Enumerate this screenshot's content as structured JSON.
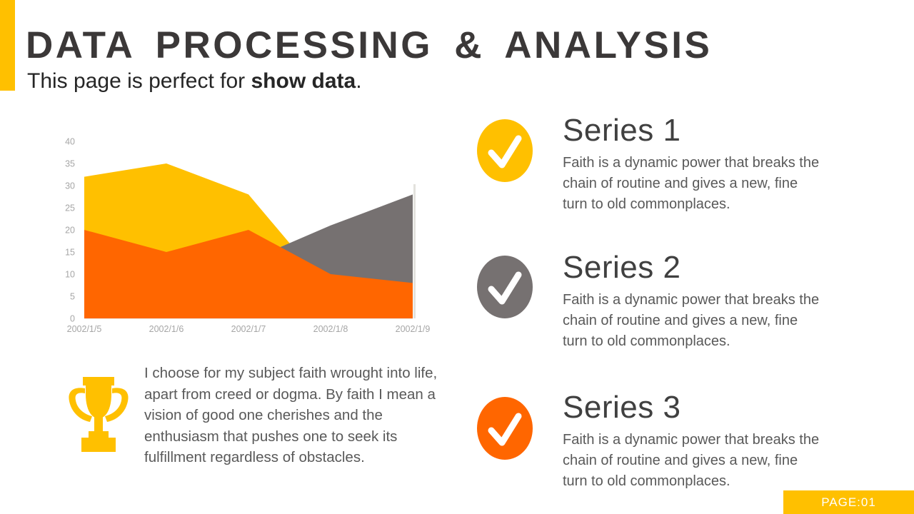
{
  "slide": {
    "accent_color": "#FFC000",
    "title": "DATA PROCESSING & ANALYSIS",
    "subtitle_prefix": "This page is perfect for ",
    "subtitle_bold": "show data",
    "subtitle_suffix": ".",
    "page_label": "PAGE:01"
  },
  "chart_data": {
    "type": "area",
    "title": "",
    "categories": [
      "2002/1/5",
      "2002/1/6",
      "2002/1/7",
      "2002/1/8",
      "2002/1/9"
    ],
    "series": [
      {
        "name": "Series 1",
        "color": "#FFC000",
        "values": [
          32,
          35,
          28,
          6,
          5
        ]
      },
      {
        "name": "Series 2",
        "color": "#767171",
        "values": [
          10,
          8,
          13,
          21,
          28
        ]
      },
      {
        "name": "Series 3",
        "color": "#FF6600",
        "values": [
          20,
          15,
          20,
          10,
          8
        ]
      }
    ],
    "xlabel": "",
    "ylabel": "",
    "ylim": [
      0,
      40
    ],
    "ytick_step": 5,
    "grid": false,
    "legend_position": "none",
    "tick_color": "#a6a6a6"
  },
  "features": [
    {
      "title": "Series 1",
      "color": "#FFC000",
      "description": "Faith is a dynamic power that breaks the chain of routine and gives a new, fine turn to old commonplaces."
    },
    {
      "title": "Series 2",
      "color": "#767171",
      "description": "Faith is a dynamic power that breaks the chain of routine and gives a new, fine turn to old commonplaces."
    },
    {
      "title": "Series 3",
      "color": "#FF6600",
      "description": "Faith is a dynamic power that breaks the chain of routine and gives a new, fine turn to old commonplaces."
    }
  ],
  "quote": {
    "icon": "trophy-icon",
    "icon_color": "#FFC000",
    "text": "I choose for my subject faith wrought into life, apart from creed or dogma. By faith I mean a vision of good one cherishes and the enthusiasm that pushes one to seek its fulfillment regardless of obstacles."
  }
}
